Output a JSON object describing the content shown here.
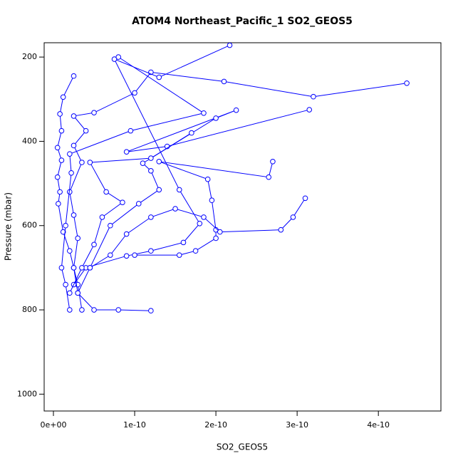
{
  "chart_data": {
    "type": "profile-lines",
    "title": "ATOM4 Northeast_Pacific_1 SO2_GEOS5",
    "x_label": "SO2_GEOS5",
    "y_label": "Pressure (mbar)",
    "color": "#0000ff",
    "xlim": [
      -1.14e-11,
      4.77e-10
    ],
    "ylim": [
      1040,
      166
    ],
    "y_reversed": true,
    "xticks": [
      {
        "value": 0,
        "label": "0e+00"
      },
      {
        "value": 1e-10,
        "label": "1e-10"
      },
      {
        "value": 2e-10,
        "label": "2e-10"
      },
      {
        "value": 3e-10,
        "label": "3e-10"
      },
      {
        "value": 4e-10,
        "label": "4e-10"
      }
    ],
    "yticks": [
      200,
      400,
      600,
      800,
      1000
    ],
    "profiles": [
      {
        "x": [
          2.5e-11,
          1.2e-11,
          8e-12,
          1e-11,
          5e-12,
          1e-11,
          5e-12,
          8e-12,
          6e-12,
          1.2e-11,
          2e-11,
          2.5e-11,
          3e-11,
          3.5e-11
        ],
        "y": [
          245,
          295,
          335,
          375,
          415,
          445,
          485,
          520,
          548,
          615,
          660,
          700,
          740,
          800
        ]
      },
      {
        "x": [
          4.35e-10,
          3.2e-10,
          2.1e-10,
          1.2e-10,
          1e-10,
          5e-11,
          2.5e-11,
          4e-11,
          2.5e-11,
          3.5e-11,
          2e-11,
          2.5e-11,
          3e-11,
          2.5e-11,
          3e-11,
          5e-11,
          8e-11,
          1.2e-10
        ],
        "y": [
          262,
          294,
          258,
          236,
          285,
          332,
          340,
          375,
          410,
          450,
          520,
          575,
          630,
          700,
          760,
          800,
          800,
          802
        ]
      },
      {
        "x": [
          2.17e-10,
          1.3e-10,
          7.5e-11,
          1.55e-10,
          1.8e-10,
          1.6e-10,
          1.2e-10,
          9e-11,
          4e-11,
          2.5e-11
        ],
        "y": [
          172,
          248,
          205,
          515,
          595,
          640,
          660,
          672,
          700,
          740
        ]
      },
      {
        "x": [
          3.15e-10,
          1.4e-10,
          9e-11,
          2.25e-10,
          2e-10,
          1.1e-10,
          1.2e-10,
          1.3e-10,
          1.05e-10,
          7e-11,
          4.5e-11
        ],
        "y": [
          325,
          412,
          425,
          326,
          345,
          452,
          470,
          515,
          548,
          600,
          700
        ]
      },
      {
        "x": [
          2.7e-10,
          2.65e-10,
          1.3e-10,
          1.9e-10,
          1.95e-10,
          2e-10,
          2e-10,
          1.75e-10,
          1.55e-10,
          1e-10
        ],
        "y": [
          448,
          485,
          448,
          490,
          540,
          610,
          630,
          660,
          670,
          670
        ]
      },
      {
        "x": [
          3.1e-10,
          2.95e-10,
          2.8e-10,
          2.05e-10,
          1.85e-10,
          1.5e-10,
          1.2e-10,
          9e-11,
          7e-11,
          4.5e-11,
          3e-11
        ],
        "y": [
          535,
          580,
          610,
          615,
          580,
          560,
          580,
          620,
          670,
          700,
          760
        ]
      },
      {
        "x": [
          1.7e-10,
          1.2e-10,
          4.5e-11,
          6.5e-11,
          8.5e-11,
          6e-11,
          5e-11,
          3.5e-11,
          2e-11
        ],
        "y": [
          380,
          440,
          450,
          520,
          545,
          580,
          645,
          700,
          760
        ]
      },
      {
        "x": [
          8e-11,
          1.85e-10,
          9.5e-11,
          2e-11,
          2.2e-11,
          1.5e-11,
          1e-11,
          1.5e-11,
          2e-11
        ],
        "y": [
          200,
          333,
          375,
          430,
          475,
          600,
          700,
          740,
          800
        ]
      }
    ]
  }
}
